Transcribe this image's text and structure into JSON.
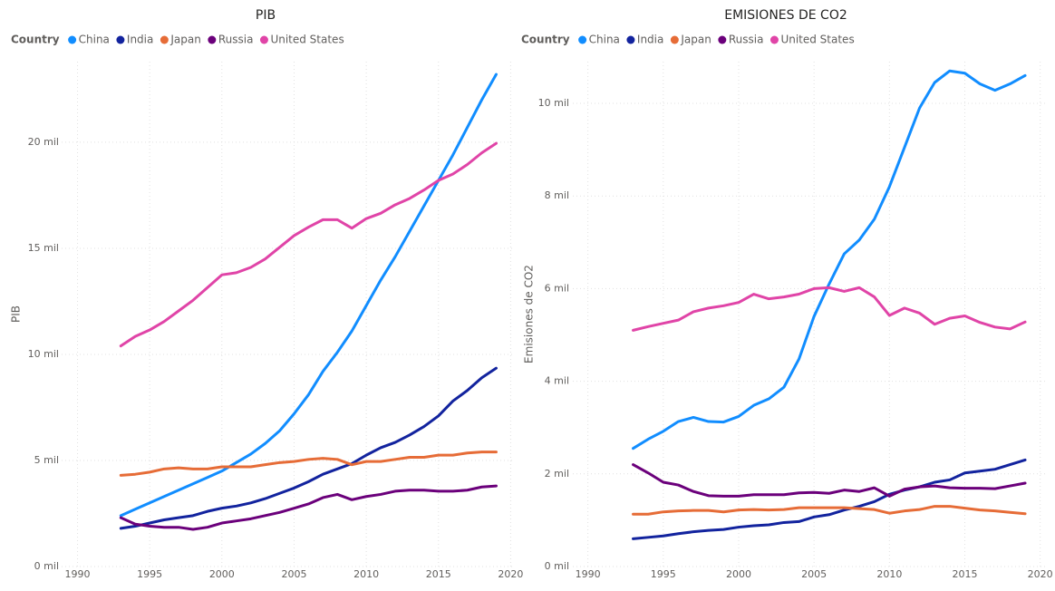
{
  "chart_data": [
    {
      "type": "line",
      "title": "PIB",
      "y_label": "PIB",
      "legend_title": "Country",
      "x": [
        1993,
        1994,
        1995,
        1996,
        1997,
        1998,
        1999,
        2000,
        2001,
        2002,
        2003,
        2004,
        2005,
        2006,
        2007,
        2008,
        2009,
        2010,
        2011,
        2012,
        2013,
        2014,
        2015,
        2016,
        2017,
        2018,
        2019
      ],
      "series": [
        {
          "name": "China",
          "color": "#118DFF",
          "values": [
            2400,
            2700,
            3000,
            3300,
            3600,
            3900,
            4200,
            4500,
            4900,
            5300,
            5800,
            6400,
            7200,
            8100,
            9200,
            10100,
            11100,
            12300,
            13500,
            14600,
            15800,
            17000,
            18200,
            19400,
            20700,
            22000,
            23200
          ]
        },
        {
          "name": "India",
          "color": "#12239E",
          "values": [
            1800,
            1900,
            2050,
            2200,
            2300,
            2400,
            2600,
            2750,
            2850,
            3000,
            3200,
            3450,
            3700,
            4000,
            4350,
            4600,
            4850,
            5250,
            5600,
            5850,
            6200,
            6600,
            7100,
            7800,
            8300,
            8900,
            9350
          ]
        },
        {
          "name": "Japan",
          "color": "#E66C37",
          "values": [
            4300,
            4350,
            4450,
            4600,
            4650,
            4600,
            4600,
            4700,
            4700,
            4700,
            4800,
            4900,
            4950,
            5050,
            5100,
            5050,
            4800,
            4950,
            4950,
            5050,
            5150,
            5150,
            5250,
            5250,
            5350,
            5400,
            5400
          ]
        },
        {
          "name": "Russia",
          "color": "#6B007B",
          "values": [
            2300,
            2000,
            1900,
            1850,
            1850,
            1750,
            1850,
            2050,
            2150,
            2250,
            2400,
            2550,
            2750,
            2950,
            3250,
            3400,
            3150,
            3300,
            3400,
            3550,
            3600,
            3600,
            3550,
            3550,
            3600,
            3750,
            3800
          ]
        },
        {
          "name": "United States",
          "color": "#E044A7",
          "values": [
            10400,
            10850,
            11150,
            11550,
            12050,
            12550,
            13150,
            13750,
            13850,
            14100,
            14500,
            15050,
            15600,
            16000,
            16350,
            16350,
            15950,
            16400,
            16650,
            17050,
            17350,
            17750,
            18200,
            18500,
            18950,
            19500,
            19950
          ]
        }
      ],
      "xlim": [
        1988.9,
        2020.1
      ],
      "xticks": [
        1990,
        1995,
        2000,
        2005,
        2010,
        2015,
        2020
      ],
      "ylim": [
        0,
        23800
      ],
      "yticks": [
        {
          "value": 0,
          "label": "0 mil"
        },
        {
          "value": 5000,
          "label": "5 mil"
        },
        {
          "value": 10000,
          "label": "10 mil"
        },
        {
          "value": 15000,
          "label": "15 mil"
        },
        {
          "value": 20000,
          "label": "20 mil"
        }
      ],
      "grid": true
    },
    {
      "type": "line",
      "title": "EMISIONES DE CO2",
      "y_label": "Emisiones de CO2",
      "legend_title": "Country",
      "x": [
        1993,
        1994,
        1995,
        1996,
        1997,
        1998,
        1999,
        2000,
        2001,
        2002,
        2003,
        2004,
        2005,
        2006,
        2007,
        2008,
        2009,
        2010,
        2011,
        2012,
        2013,
        2014,
        2015,
        2016,
        2017,
        2018,
        2019
      ],
      "series": [
        {
          "name": "China",
          "color": "#118DFF",
          "values": [
            2550,
            2750,
            2920,
            3130,
            3220,
            3130,
            3120,
            3240,
            3480,
            3620,
            3870,
            4480,
            5400,
            6100,
            6750,
            7050,
            7500,
            8200,
            9050,
            9900,
            10450,
            10700,
            10650,
            10420,
            10280,
            10420,
            10600
          ]
        },
        {
          "name": "India",
          "color": "#12239E",
          "values": [
            600,
            630,
            660,
            710,
            750,
            780,
            800,
            850,
            880,
            900,
            950,
            970,
            1070,
            1120,
            1220,
            1300,
            1400,
            1560,
            1650,
            1720,
            1820,
            1870,
            2020,
            2060,
            2100,
            2200,
            2300
          ]
        },
        {
          "name": "Japan",
          "color": "#E66C37",
          "values": [
            1130,
            1130,
            1180,
            1200,
            1210,
            1210,
            1180,
            1220,
            1230,
            1220,
            1230,
            1270,
            1270,
            1270,
            1270,
            1250,
            1230,
            1150,
            1200,
            1230,
            1300,
            1300,
            1260,
            1220,
            1200,
            1170,
            1140
          ]
        },
        {
          "name": "Russia",
          "color": "#6B007B",
          "values": [
            2200,
            2020,
            1820,
            1760,
            1620,
            1530,
            1520,
            1520,
            1550,
            1550,
            1550,
            1590,
            1600,
            1580,
            1650,
            1620,
            1700,
            1520,
            1670,
            1720,
            1740,
            1700,
            1690,
            1690,
            1680,
            1740,
            1800
          ]
        },
        {
          "name": "United States",
          "color": "#E044A7",
          "values": [
            5100,
            5180,
            5250,
            5320,
            5500,
            5580,
            5630,
            5700,
            5880,
            5780,
            5820,
            5880,
            6000,
            6020,
            5940,
            6020,
            5820,
            5420,
            5580,
            5470,
            5230,
            5360,
            5410,
            5270,
            5170,
            5130,
            5280
          ]
        }
      ],
      "xlim": [
        1989,
        2020.5
      ],
      "xticks": [
        1990,
        1995,
        2000,
        2005,
        2010,
        2015,
        2020
      ],
      "ylim": [
        0,
        10900
      ],
      "yticks": [
        {
          "value": 0,
          "label": "0 mil"
        },
        {
          "value": 2000,
          "label": "2 mil"
        },
        {
          "value": 4000,
          "label": "4 mil"
        },
        {
          "value": 6000,
          "label": "6 mil"
        },
        {
          "value": 8000,
          "label": "8 mil"
        },
        {
          "value": 10000,
          "label": "10 mil"
        }
      ],
      "grid": true
    }
  ]
}
